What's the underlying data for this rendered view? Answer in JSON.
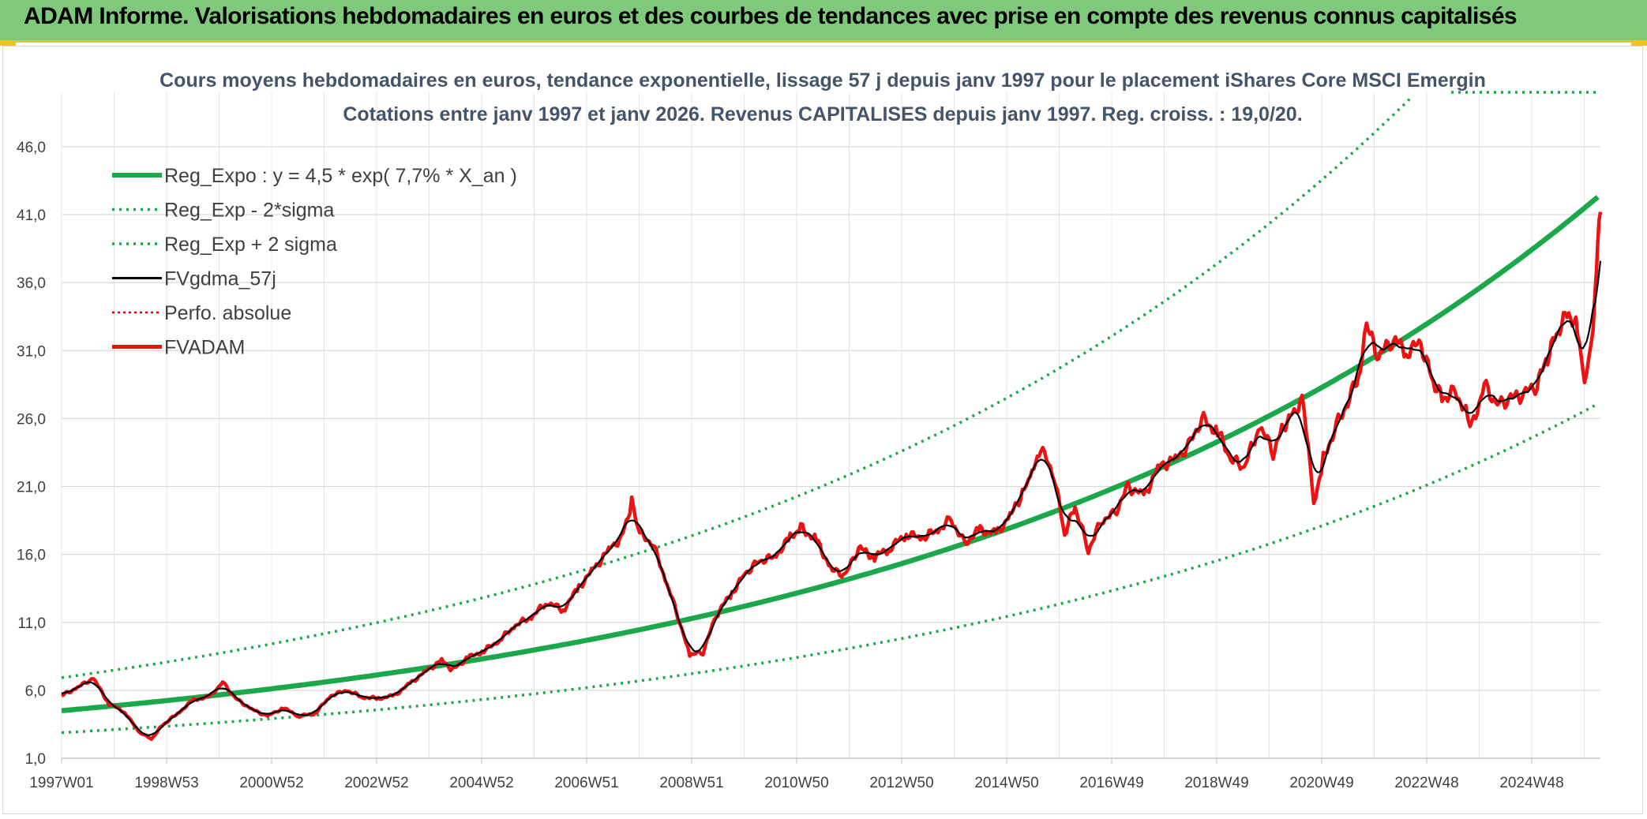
{
  "header": {
    "title": "ADAM Informe. Valorisations hebdomadaires en euros et des courbes de tendances avec prise en compte des revenus connus capitalisés"
  },
  "chart_data": {
    "type": "line",
    "subtitle_line1": "Cours moyens hebdomadaires en euros, tendance exponentielle, lissage 57 j depuis janv 1997 pour le placement iShares Core MSCI Emergin",
    "subtitle_line2": "Cotations entre janv 1997 et janv 2026. Revenus CAPITALISES depuis janv 1997. Reg. croiss. : 19,0/20.",
    "y_ticks": [
      "1,0",
      "6,0",
      "11,0",
      "16,0",
      "21,0",
      "26,0",
      "31,0",
      "36,0",
      "41,0",
      "46,0"
    ],
    "ylim": [
      1,
      50
    ],
    "x_ticks": [
      "1997W01",
      "1998W53",
      "2000W52",
      "2002W52",
      "2004W52",
      "2006W51",
      "2008W51",
      "2010W50",
      "2012W50",
      "2014W50",
      "2016W49",
      "2018W49",
      "2020W49",
      "2022W48",
      "2024W48"
    ],
    "xlim": [
      1997.0,
      2026.15
    ],
    "grid": true,
    "legend_placement": "top-left",
    "legend": [
      {
        "label": "Reg_Expo : y = 4,5 * exp( 7,7% *  X_an )",
        "color": "#1aa84a",
        "style": "solid-thick"
      },
      {
        "label": "Reg_Exp - 2*sigma",
        "color": "#1aa84a",
        "style": "dotted"
      },
      {
        "label": "Reg_Exp + 2 sigma",
        "color": "#1aa84a",
        "style": "dotted"
      },
      {
        "label": "FVgdma_57j",
        "color": "#000000",
        "style": "solid"
      },
      {
        "label": "Perfo. absolue",
        "color": "#e00000",
        "style": "dotted-thin"
      },
      {
        "label": "FVADAM",
        "color": "#ee1111",
        "style": "solid-thick"
      }
    ],
    "regression": {
      "a": 4.5,
      "rate": 0.077,
      "lower_factor": 0.64,
      "upper_factor": 1.54
    },
    "series": [
      {
        "name": "FVADAM",
        "color": "#ee1111",
        "points": [
          [
            1997.0,
            5.6
          ],
          [
            1997.3,
            6.2
          ],
          [
            1997.6,
            6.9
          ],
          [
            1997.9,
            5.0
          ],
          [
            1998.2,
            4.4
          ],
          [
            1998.45,
            3.0
          ],
          [
            1998.7,
            2.4
          ],
          [
            1998.9,
            3.4
          ],
          [
            1999.2,
            4.3
          ],
          [
            1999.5,
            5.3
          ],
          [
            1999.8,
            5.5
          ],
          [
            2000.05,
            6.6
          ],
          [
            2000.3,
            5.4
          ],
          [
            2000.6,
            4.6
          ],
          [
            2000.9,
            4.1
          ],
          [
            2001.2,
            4.7
          ],
          [
            2001.5,
            4.1
          ],
          [
            2001.8,
            4.3
          ],
          [
            2002.1,
            5.6
          ],
          [
            2002.4,
            6.0
          ],
          [
            2002.7,
            5.5
          ],
          [
            2003.0,
            5.4
          ],
          [
            2003.3,
            5.6
          ],
          [
            2003.6,
            6.5
          ],
          [
            2003.9,
            7.4
          ],
          [
            2004.2,
            8.2
          ],
          [
            2004.4,
            7.5
          ],
          [
            2004.7,
            8.4
          ],
          [
            2005.0,
            8.9
          ],
          [
            2005.3,
            9.7
          ],
          [
            2005.6,
            10.8
          ],
          [
            2005.9,
            11.4
          ],
          [
            2006.2,
            12.5
          ],
          [
            2006.5,
            11.9
          ],
          [
            2006.8,
            13.6
          ],
          [
            2007.1,
            15.0
          ],
          [
            2007.4,
            16.5
          ],
          [
            2007.6,
            17.2
          ],
          [
            2007.8,
            19.8
          ],
          [
            2007.95,
            17.5
          ],
          [
            2008.2,
            16.8
          ],
          [
            2008.5,
            13.5
          ],
          [
            2008.75,
            10.5
          ],
          [
            2008.9,
            8.6
          ],
          [
            2009.15,
            8.8
          ],
          [
            2009.4,
            11.5
          ],
          [
            2009.7,
            13.2
          ],
          [
            2009.95,
            14.6
          ],
          [
            2010.2,
            15.5
          ],
          [
            2010.5,
            15.8
          ],
          [
            2010.8,
            17.2
          ],
          [
            2011.0,
            18.0
          ],
          [
            2011.3,
            17.0
          ],
          [
            2011.6,
            14.8
          ],
          [
            2011.85,
            14.5
          ],
          [
            2012.1,
            16.5
          ],
          [
            2012.4,
            15.8
          ],
          [
            2012.7,
            16.5
          ],
          [
            2013.0,
            17.5
          ],
          [
            2013.3,
            17.2
          ],
          [
            2013.6,
            17.8
          ],
          [
            2013.85,
            18.6
          ],
          [
            2014.1,
            16.8
          ],
          [
            2014.4,
            17.8
          ],
          [
            2014.7,
            17.5
          ],
          [
            2015.0,
            19.0
          ],
          [
            2015.2,
            20.5
          ],
          [
            2015.35,
            21.5
          ],
          [
            2015.55,
            23.8
          ],
          [
            2015.8,
            21.8
          ],
          [
            2016.0,
            17.5
          ],
          [
            2016.2,
            19.5
          ],
          [
            2016.45,
            16.3
          ],
          [
            2016.7,
            18.5
          ],
          [
            2016.95,
            19.0
          ],
          [
            2017.2,
            21.0
          ],
          [
            2017.5,
            20.3
          ],
          [
            2017.8,
            22.5
          ],
          [
            2018.1,
            23.0
          ],
          [
            2018.35,
            24.0
          ],
          [
            2018.6,
            26.0
          ],
          [
            2018.9,
            25.0
          ],
          [
            2019.15,
            23.0
          ],
          [
            2019.4,
            22.4
          ],
          [
            2019.7,
            25.5
          ],
          [
            2019.95,
            23.5
          ],
          [
            2020.15,
            25.5
          ],
          [
            2020.35,
            26.5
          ],
          [
            2020.5,
            27.6
          ],
          [
            2020.62,
            24.0
          ],
          [
            2020.72,
            19.6
          ],
          [
            2020.9,
            23.0
          ],
          [
            2021.15,
            25.5
          ],
          [
            2021.4,
            27.5
          ],
          [
            2021.6,
            29.5
          ],
          [
            2021.72,
            32.8
          ],
          [
            2021.95,
            30.5
          ],
          [
            2022.2,
            31.8
          ],
          [
            2022.5,
            31.0
          ],
          [
            2022.75,
            31.5
          ],
          [
            2022.95,
            29.0
          ],
          [
            2023.15,
            27.5
          ],
          [
            2023.4,
            28.0
          ],
          [
            2023.6,
            26.5
          ],
          [
            2023.72,
            25.4
          ],
          [
            2023.95,
            28.5
          ],
          [
            2024.2,
            27.0
          ],
          [
            2024.45,
            27.5
          ],
          [
            2024.7,
            27.8
          ],
          [
            2024.95,
            28.5
          ],
          [
            2025.15,
            30.5
          ],
          [
            2025.35,
            32.5
          ],
          [
            2025.55,
            33.8
          ],
          [
            2025.72,
            32.5
          ],
          [
            2025.85,
            29.0
          ],
          [
            2025.97,
            31.2
          ],
          [
            2026.05,
            34.8
          ],
          [
            2026.1,
            38.8
          ],
          [
            2026.15,
            41.2
          ]
        ]
      }
    ]
  }
}
